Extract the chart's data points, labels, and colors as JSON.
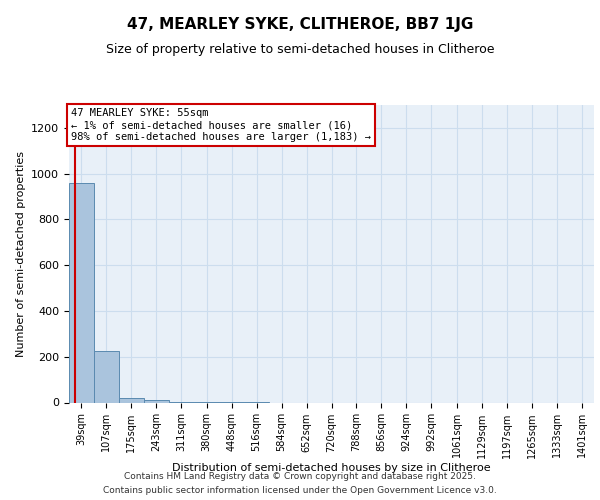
{
  "title": "47, MEARLEY SYKE, CLITHEROE, BB7 1JG",
  "subtitle": "Size of property relative to semi-detached houses in Clitheroe",
  "xlabel": "Distribution of semi-detached houses by size in Clitheroe",
  "ylabel": "Number of semi-detached properties",
  "bin_edges": [
    39,
    107,
    175,
    243,
    311,
    380,
    448,
    516,
    584,
    652,
    720,
    788,
    856,
    924,
    992,
    1061,
    1129,
    1197,
    1265,
    1333,
    1401
  ],
  "bar_heights": [
    960,
    225,
    20,
    10,
    4,
    2,
    1,
    1,
    0,
    0,
    0,
    0,
    0,
    0,
    0,
    0,
    0,
    0,
    0,
    0
  ],
  "bar_color": "#aac4dd",
  "bar_edge_color": "#5a8ab0",
  "property_size": 55,
  "property_label": "47 MEARLEY SYKE: 55sqm",
  "annotation_line1": "← 1% of semi-detached houses are smaller (16)",
  "annotation_line2": "98% of semi-detached houses are larger (1,183) →",
  "vline_color": "#cc0000",
  "ylim": [
    0,
    1300
  ],
  "yticks": [
    0,
    200,
    400,
    600,
    800,
    1000,
    1200
  ],
  "grid_color": "#ccddee",
  "background_color": "#e8f0f8",
  "footer1": "Contains HM Land Registry data © Crown copyright and database right 2025.",
  "footer2": "Contains public sector information licensed under the Open Government Licence v3.0."
}
